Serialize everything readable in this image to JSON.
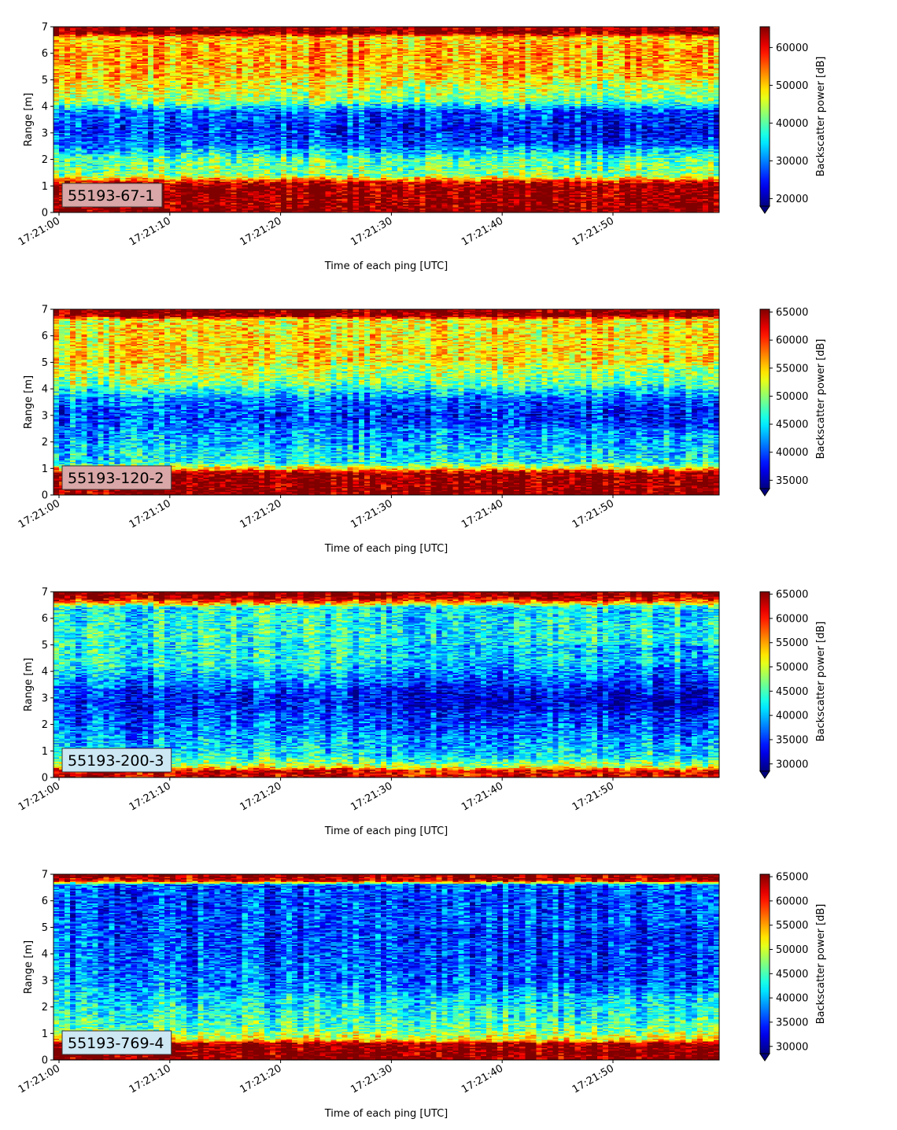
{
  "chart_data": [
    {
      "type": "heatmap",
      "panel_id": "55193-67-1",
      "xlabel": "Time of each ping [UTC]",
      "ylabel": "Range [m]",
      "colorbar_label": "Backscatter power [dB]",
      "x_range": [
        "17:21:00",
        "17:21:59"
      ],
      "xticks": [
        "17:21:00",
        "17:21:10",
        "17:21:20",
        "17:21:30",
        "17:21:40",
        "17:21:50"
      ],
      "ylim": [
        0,
        7
      ],
      "yticks": [
        "0",
        "1",
        "2",
        "3",
        "4",
        "5",
        "6",
        "7"
      ],
      "clim": [
        18000,
        65500
      ],
      "colorbar_ticks": [
        "20000",
        "30000",
        "40000",
        "50000",
        "60000"
      ],
      "colorbar_tick_values": [
        20000,
        30000,
        40000,
        50000,
        60000
      ],
      "colormap": "jet",
      "label_box_color": "#d9a7a7",
      "profile": [
        {
          "range": 0.15,
          "value": 65500
        },
        {
          "range": 0.3,
          "value": 65000
        },
        {
          "range": 1.0,
          "value": 65000
        },
        {
          "range": 1.15,
          "value": 60000
        },
        {
          "range": 1.4,
          "value": 42000
        },
        {
          "range": 2.0,
          "value": 40000
        },
        {
          "range": 2.5,
          "value": 30000
        },
        {
          "range": 3.2,
          "value": 27000
        },
        {
          "range": 3.8,
          "value": 30000
        },
        {
          "range": 4.2,
          "value": 44000
        },
        {
          "range": 5.0,
          "value": 50000
        },
        {
          "range": 6.0,
          "value": 52000
        },
        {
          "range": 6.6,
          "value": 50000
        },
        {
          "range": 6.75,
          "value": 65500
        },
        {
          "range": 7.0,
          "value": 65500
        }
      ]
    },
    {
      "type": "heatmap",
      "panel_id": "55193-120-2",
      "xlabel": "Time of each ping [UTC]",
      "ylabel": "Range [m]",
      "colorbar_label": "Backscatter power [dB]",
      "x_range": [
        "17:21:00",
        "17:21:59"
      ],
      "xticks": [
        "17:21:00",
        "17:21:10",
        "17:21:20",
        "17:21:30",
        "17:21:40",
        "17:21:50"
      ],
      "ylim": [
        0,
        7
      ],
      "yticks": [
        "0",
        "1",
        "2",
        "3",
        "4",
        "5",
        "6",
        "7"
      ],
      "clim": [
        33500,
        65500
      ],
      "colorbar_ticks": [
        "35000",
        "40000",
        "45000",
        "50000",
        "55000",
        "60000",
        "65000"
      ],
      "colorbar_tick_values": [
        35000,
        40000,
        45000,
        50000,
        55000,
        60000,
        65000
      ],
      "colormap": "jet",
      "label_box_color": "#d9a7a7",
      "profile": [
        {
          "range": 0.15,
          "value": 65500
        },
        {
          "range": 0.3,
          "value": 65000
        },
        {
          "range": 0.8,
          "value": 65000
        },
        {
          "range": 0.95,
          "value": 57000
        },
        {
          "range": 1.2,
          "value": 46000
        },
        {
          "range": 2.0,
          "value": 43000
        },
        {
          "range": 3.0,
          "value": 40000
        },
        {
          "range": 3.6,
          "value": 42000
        },
        {
          "range": 4.2,
          "value": 50000
        },
        {
          "range": 5.0,
          "value": 54000
        },
        {
          "range": 6.0,
          "value": 54000
        },
        {
          "range": 6.6,
          "value": 53000
        },
        {
          "range": 6.75,
          "value": 65500
        },
        {
          "range": 7.0,
          "value": 65500
        }
      ]
    },
    {
      "type": "heatmap",
      "panel_id": "55193-200-3",
      "xlabel": "Time of each ping [UTC]",
      "ylabel": "Range [m]",
      "colorbar_label": "Backscatter power [dB]",
      "x_range": [
        "17:21:00",
        "17:21:59"
      ],
      "xticks": [
        "17:21:00",
        "17:21:10",
        "17:21:20",
        "17:21:30",
        "17:21:40",
        "17:21:50"
      ],
      "ylim": [
        0,
        7
      ],
      "yticks": [
        "0",
        "1",
        "2",
        "3",
        "4",
        "5",
        "6",
        "7"
      ],
      "clim": [
        28500,
        65500
      ],
      "colorbar_ticks": [
        "30000",
        "35000",
        "40000",
        "45000",
        "50000",
        "55000",
        "60000",
        "65000"
      ],
      "colorbar_tick_values": [
        30000,
        35000,
        40000,
        45000,
        50000,
        55000,
        60000,
        65000
      ],
      "colormap": "jet",
      "label_box_color": "#cde7f3",
      "profile": [
        {
          "range": 0.1,
          "value": 62000
        },
        {
          "range": 0.25,
          "value": 62000
        },
        {
          "range": 0.4,
          "value": 50000
        },
        {
          "range": 0.8,
          "value": 42000
        },
        {
          "range": 2.0,
          "value": 36000
        },
        {
          "range": 3.0,
          "value": 34000
        },
        {
          "range": 3.6,
          "value": 38000
        },
        {
          "range": 4.3,
          "value": 43000
        },
        {
          "range": 5.5,
          "value": 43000
        },
        {
          "range": 6.4,
          "value": 42000
        },
        {
          "range": 6.6,
          "value": 56000
        },
        {
          "range": 6.8,
          "value": 65000
        },
        {
          "range": 7.0,
          "value": 65500
        }
      ]
    },
    {
      "type": "heatmap",
      "panel_id": "55193-769-4",
      "xlabel": "Time of each ping [UTC]",
      "ylabel": "Range [m]",
      "colorbar_label": "Backscatter power [dB]",
      "x_range": [
        "17:21:00",
        "17:21:59"
      ],
      "xticks": [
        "17:21:00",
        "17:21:10",
        "17:21:20",
        "17:21:30",
        "17:21:40",
        "17:21:50"
      ],
      "ylim": [
        0,
        7
      ],
      "yticks": [
        "0",
        "1",
        "2",
        "3",
        "4",
        "5",
        "6",
        "7"
      ],
      "clim": [
        28500,
        65500
      ],
      "colorbar_ticks": [
        "30000",
        "35000",
        "40000",
        "45000",
        "50000",
        "55000",
        "60000",
        "65000"
      ],
      "colorbar_tick_values": [
        30000,
        35000,
        40000,
        45000,
        50000,
        55000,
        60000,
        65000
      ],
      "colormap": "jet",
      "label_box_color": "#cde7f3",
      "profile": [
        {
          "range": 0.2,
          "value": 65500
        },
        {
          "range": 0.6,
          "value": 65000
        },
        {
          "range": 0.75,
          "value": 52000
        },
        {
          "range": 1.2,
          "value": 45000
        },
        {
          "range": 2.0,
          "value": 42000
        },
        {
          "range": 3.0,
          "value": 38000
        },
        {
          "range": 4.0,
          "value": 37000
        },
        {
          "range": 5.0,
          "value": 36000
        },
        {
          "range": 6.0,
          "value": 35000
        },
        {
          "range": 6.6,
          "value": 36000
        },
        {
          "range": 6.75,
          "value": 62000
        },
        {
          "range": 7.0,
          "value": 65500
        }
      ]
    }
  ]
}
